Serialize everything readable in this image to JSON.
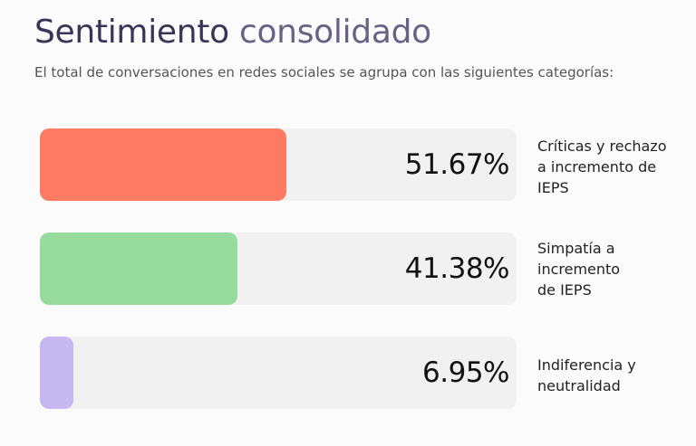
{
  "header": {
    "title_part1": "Sentimiento",
    "title_part2": "consolidado",
    "subtitle": "El total de conversaciones en redes sociales se agrupa con las siguientes categorías:"
  },
  "chart_data": {
    "type": "bar",
    "orientation": "horizontal",
    "title": "Sentimiento consolidado",
    "subtitle": "El total de conversaciones en redes sociales se agrupa con las siguientes categorías:",
    "unit": "%",
    "ylim": [
      0,
      100
    ],
    "categories": [
      "Críticas y rechazo a incremento de IEPS",
      "Simpatía a incremento de IEPS",
      "Indiferencia y neutralidad"
    ],
    "label_lines": [
      [
        "Críticas y rechazo",
        "a incremento de",
        "IEPS"
      ],
      [
        "Simpatía a",
        "incremento",
        "de IEPS"
      ],
      [
        "Indiferencia y",
        "neutralidad"
      ]
    ],
    "values": [
      51.67,
      41.38,
      6.95
    ],
    "value_labels": [
      "51.67%",
      "41.38%",
      "6.95%"
    ],
    "colors": [
      "#ff7a62",
      "#97db9c",
      "#c5b8ee"
    ],
    "track_color": "#f1f1f1",
    "grid": false,
    "legend": "none"
  }
}
